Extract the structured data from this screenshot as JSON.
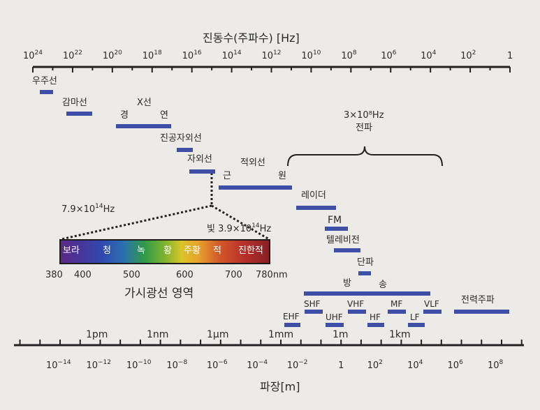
{
  "freq_axis": {
    "title": "진동수(주파수) [Hz]",
    "ticks": [
      {
        "base": "10",
        "exp": "24"
      },
      {
        "base": "10",
        "exp": "22"
      },
      {
        "base": "10",
        "exp": "20"
      },
      {
        "base": "10",
        "exp": "18"
      },
      {
        "base": "10",
        "exp": "16"
      },
      {
        "base": "10",
        "exp": "14"
      },
      {
        "base": "10",
        "exp": "12"
      },
      {
        "base": "10",
        "exp": "10"
      },
      {
        "base": "10",
        "exp": "8"
      },
      {
        "base": "10",
        "exp": "6"
      },
      {
        "base": "10",
        "exp": "4"
      },
      {
        "base": "10",
        "exp": "2"
      },
      {
        "base": "1",
        "exp": ""
      }
    ]
  },
  "wave_axis": {
    "title": "파장[m]",
    "ticks": [
      {
        "base": "10",
        "exp": "−14"
      },
      {
        "base": "10",
        "exp": "−12"
      },
      {
        "base": "10",
        "exp": "−10"
      },
      {
        "base": "10",
        "exp": "−8"
      },
      {
        "base": "10",
        "exp": "−6"
      },
      {
        "base": "10",
        "exp": "−4"
      },
      {
        "base": "10",
        "exp": "−2"
      },
      {
        "base": "1",
        "exp": ""
      },
      {
        "base": "10",
        "exp": "2"
      },
      {
        "base": "10",
        "exp": "4"
      },
      {
        "base": "10",
        "exp": "6"
      },
      {
        "base": "10",
        "exp": "8"
      }
    ],
    "units": [
      "1pm",
      "1nm",
      "1μm",
      "1mm",
      "1m",
      "1km"
    ]
  },
  "bands": {
    "cosmic": "우주선",
    "gamma": "감마선",
    "xray": "X선",
    "xray_hard": "경",
    "xray_soft": "연",
    "vuv": "진공자외선",
    "uv": "자외선",
    "ir": "적외선",
    "ir_near": "근",
    "ir_far": "원",
    "radio_freq": "3×10⁸Hz",
    "radio": "전파",
    "radar": "레이더",
    "fm": "FM",
    "tv": "텔레비전",
    "shortwave": "단파",
    "broadcast_1": "방",
    "broadcast_2": "송",
    "power": "전력주파",
    "ehf": "EHF",
    "shf": "SHF",
    "uhf": "UHF",
    "vhf": "VHF",
    "hf": "HF",
    "mf": "MF",
    "lf": "LF",
    "vlf": "VLF"
  },
  "visible": {
    "freq_high": "7.9×10",
    "freq_high_exp": "14",
    "freq_high_unit": "Hz",
    "light_label": "빛 3.9×10",
    "freq_low_exp": "14",
    "freq_low_unit": "Hz",
    "colors": [
      "보라",
      "청",
      "녹",
      "황",
      "주황",
      "적",
      "진한적"
    ],
    "nm_ticks": [
      "380",
      "400",
      "500",
      "600",
      "700",
      "780nm"
    ],
    "caption": "가시광선 영역"
  }
}
